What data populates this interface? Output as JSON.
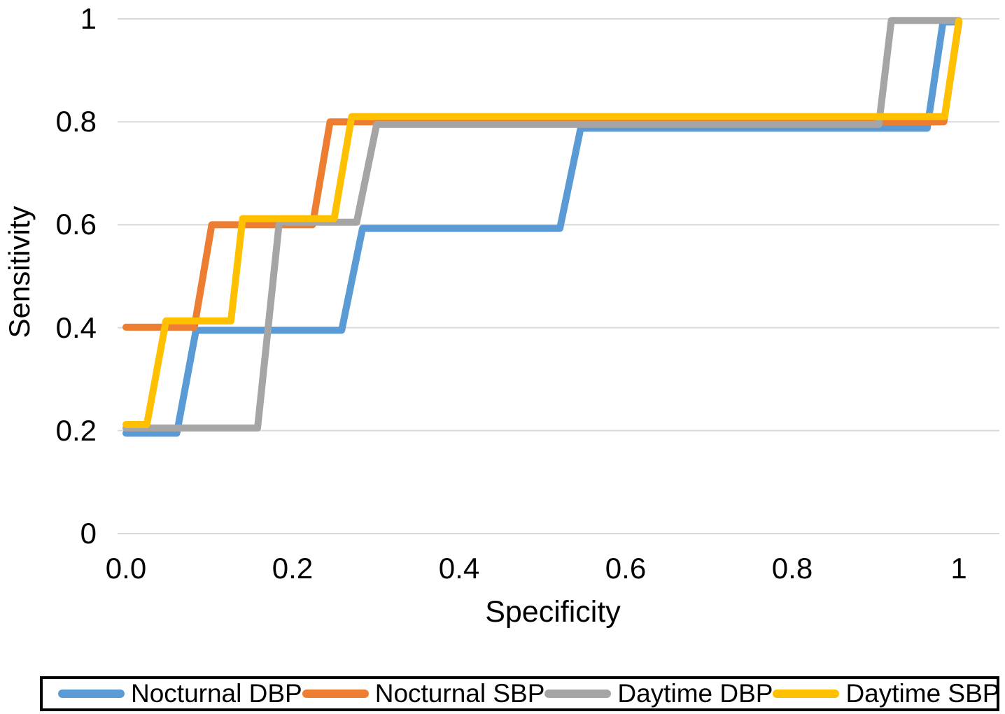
{
  "chart_data": {
    "type": "line",
    "subtype": "roc-step-curves",
    "title": "",
    "xlabel": "Specificity",
    "ylabel": "Sensitivity",
    "xlim": [
      0,
      1.05
    ],
    "ylim": [
      0,
      1
    ],
    "grid": "horizontal",
    "gridline_color": "#D9D9D9",
    "background_color": "#FFFFFF",
    "legend_position": "bottom-boxed",
    "x_ticks": [
      {
        "v": 0.0,
        "label": "0.0"
      },
      {
        "v": 0.2,
        "label": "0.2"
      },
      {
        "v": 0.4,
        "label": "0.4"
      },
      {
        "v": 0.6,
        "label": "0.6"
      },
      {
        "v": 0.8,
        "label": "0.8"
      },
      {
        "v": 1.0,
        "label": "1"
      }
    ],
    "y_ticks": [
      {
        "v": 0.0,
        "label": "0"
      },
      {
        "v": 0.2,
        "label": "0.2"
      },
      {
        "v": 0.4,
        "label": "0.4"
      },
      {
        "v": 0.6,
        "label": "0.6"
      },
      {
        "v": 0.8,
        "label": "0.8"
      },
      {
        "v": 1.0,
        "label": "1"
      }
    ],
    "series": [
      {
        "name": "Nocturnal DBP",
        "color": "#5B9BD5",
        "plateau_sensitivities": [
          0.2,
          0.4,
          0.6,
          0.8,
          1.0
        ],
        "points": [
          [
            0,
            0.195
          ],
          [
            0.061,
            0.195
          ],
          [
            0.084,
            0.395
          ],
          [
            0.259,
            0.395
          ],
          [
            0.284,
            0.593
          ],
          [
            0.521,
            0.593
          ],
          [
            0.546,
            0.7875
          ],
          [
            0.962,
            0.7875
          ],
          [
            0.981,
            0.994
          ],
          [
            1,
            0.994
          ]
        ]
      },
      {
        "name": "Nocturnal SBP",
        "color": "#ED7D31",
        "plateau_sensitivities": [
          0.4,
          0.6,
          0.8,
          1.0
        ],
        "points": [
          [
            0,
            0.401
          ],
          [
            0.082,
            0.401
          ],
          [
            0.103,
            0.6
          ],
          [
            0.224,
            0.6
          ],
          [
            0.245,
            0.8
          ],
          [
            0.982,
            0.8
          ],
          [
            1,
            0.993
          ]
        ]
      },
      {
        "name": "Daytime DBP",
        "color": "#A5A5A5",
        "plateau_sensitivities": [
          0.2,
          0.6,
          0.8,
          1.0
        ],
        "points": [
          [
            0,
            0.205
          ],
          [
            0.158,
            0.205
          ],
          [
            0.184,
            0.605
          ],
          [
            0.277,
            0.605
          ],
          [
            0.301,
            0.795
          ],
          [
            0.904,
            0.795
          ],
          [
            0.919,
            0.997
          ],
          [
            1,
            0.997
          ]
        ]
      },
      {
        "name": "Daytime SBP",
        "color": "#FFC000",
        "plateau_sensitivities": [
          0.2,
          0.4,
          0.6,
          0.8,
          1.0
        ],
        "points": [
          [
            0,
            0.212
          ],
          [
            0.025,
            0.212
          ],
          [
            0.048,
            0.413
          ],
          [
            0.126,
            0.413
          ],
          [
            0.14,
            0.612
          ],
          [
            0.25,
            0.612
          ],
          [
            0.271,
            0.81
          ],
          [
            0.983,
            0.81
          ],
          [
            1,
            0.996
          ]
        ]
      }
    ]
  },
  "axes": {
    "x_title": "Specificity",
    "y_title": "Sensitivity"
  }
}
